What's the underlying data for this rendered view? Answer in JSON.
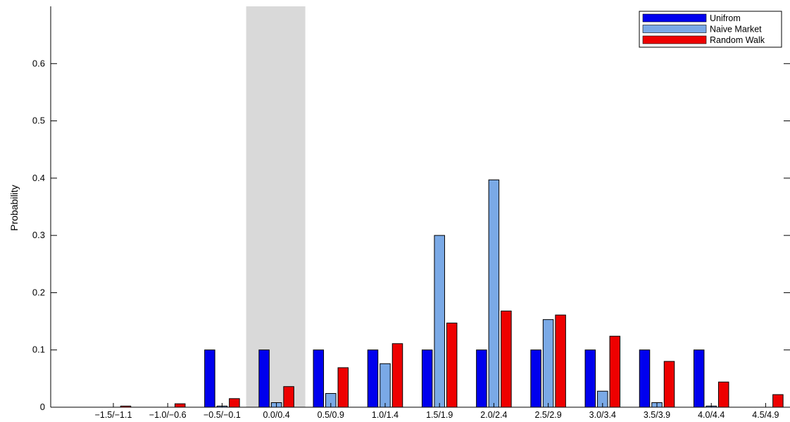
{
  "chart_data": {
    "type": "bar",
    "title": "",
    "xlabel": "",
    "ylabel": "Probability",
    "ylim": [
      0,
      0.7
    ],
    "yticks": [
      0,
      0.1,
      0.2,
      0.3,
      0.4,
      0.5,
      0.6
    ],
    "ytick_labels": [
      "0",
      "0.1",
      "0.2",
      "0.3",
      "0.4",
      "0.5",
      "0.6"
    ],
    "categories": [
      "−1.5/−1.1",
      "−1.0/−0.6",
      "−0.5/−0.1",
      "0.0/0.4",
      "0.5/0.9",
      "1.0/1.4",
      "1.5/1.9",
      "2.0/2.4",
      "2.5/2.9",
      "3.0/3.4",
      "3.5/3.9",
      "4.0/4.4",
      "4.5/4.9"
    ],
    "highlighted_category": "0.0/0.4",
    "highlight_color": "#d9d9d9",
    "legend_position": "top-right",
    "grid": false,
    "series": [
      {
        "name": "Unifrom",
        "color": "#0000ee",
        "values": [
          0,
          0,
          0.1,
          0.1,
          0.1,
          0.1,
          0.1,
          0.1,
          0.1,
          0.1,
          0.1,
          0.1,
          0
        ]
      },
      {
        "name": "Naive Market",
        "color": "#7aa9e6",
        "values": [
          0,
          0,
          0.002,
          0.008,
          0.024,
          0.076,
          0.3,
          0.397,
          0.153,
          0.028,
          0.008,
          0.002,
          0
        ]
      },
      {
        "name": "Random Walk",
        "color": "#ee0000",
        "values": [
          0.002,
          0.006,
          0.015,
          0.036,
          0.069,
          0.111,
          0.147,
          0.168,
          0.161,
          0.124,
          0.08,
          0.044,
          0.022
        ]
      }
    ]
  }
}
